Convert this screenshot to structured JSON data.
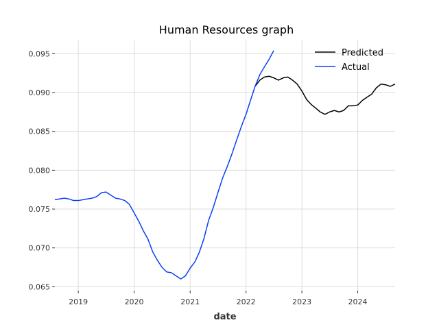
{
  "chart_data": {
    "type": "line",
    "title": "Human Resources graph",
    "xlabel": "date",
    "ylabel": "",
    "xlim": [
      "2018-08-01",
      "2024-09-01"
    ],
    "ylim": [
      0.0645,
      0.0968
    ],
    "grid": true,
    "legend_position": "top-right",
    "x_ticks": [
      "2019",
      "2020",
      "2021",
      "2022",
      "2023",
      "2024"
    ],
    "y_ticks": [
      "0.065",
      "0.070",
      "0.075",
      "0.080",
      "0.085",
      "0.090",
      "0.095"
    ],
    "series": [
      {
        "name": "Predicted",
        "color": "#000000",
        "points": [
          [
            "2022-03-01",
            0.0908
          ],
          [
            "2022-04-01",
            0.0916
          ],
          [
            "2022-05-01",
            0.092
          ],
          [
            "2022-06-01",
            0.0921
          ],
          [
            "2022-07-01",
            0.0919
          ],
          [
            "2022-08-01",
            0.0916
          ],
          [
            "2022-09-01",
            0.0919
          ],
          [
            "2022-10-01",
            0.092
          ],
          [
            "2022-11-01",
            0.0916
          ],
          [
            "2022-12-01",
            0.0911
          ],
          [
            "2023-01-01",
            0.0902
          ],
          [
            "2023-02-01",
            0.0891
          ],
          [
            "2023-03-01",
            0.0885
          ],
          [
            "2023-04-01",
            0.088
          ],
          [
            "2023-05-01",
            0.0875
          ],
          [
            "2023-06-01",
            0.0872
          ],
          [
            "2023-07-01",
            0.0875
          ],
          [
            "2023-08-01",
            0.0877
          ],
          [
            "2023-09-01",
            0.0875
          ],
          [
            "2023-10-01",
            0.0877
          ],
          [
            "2023-11-01",
            0.0883
          ],
          [
            "2023-12-01",
            0.0883
          ],
          [
            "2024-01-01",
            0.0884
          ],
          [
            "2024-02-01",
            0.089
          ],
          [
            "2024-03-01",
            0.0894
          ],
          [
            "2024-04-01",
            0.0898
          ],
          [
            "2024-05-01",
            0.0906
          ],
          [
            "2024-06-01",
            0.0911
          ],
          [
            "2024-07-01",
            0.091
          ],
          [
            "2024-08-01",
            0.0908
          ],
          [
            "2024-09-01",
            0.0911
          ]
        ]
      },
      {
        "name": "Actual",
        "color": "#0a3ef5",
        "points": [
          [
            "2018-08-01",
            0.0762
          ],
          [
            "2018-09-01",
            0.0763
          ],
          [
            "2018-10-01",
            0.0764
          ],
          [
            "2018-11-01",
            0.0763
          ],
          [
            "2018-12-01",
            0.0761
          ],
          [
            "2019-01-01",
            0.0761
          ],
          [
            "2019-02-01",
            0.0762
          ],
          [
            "2019-03-01",
            0.0763
          ],
          [
            "2019-04-01",
            0.0764
          ],
          [
            "2019-05-01",
            0.0766
          ],
          [
            "2019-06-01",
            0.0771
          ],
          [
            "2019-07-01",
            0.0772
          ],
          [
            "2019-08-01",
            0.0768
          ],
          [
            "2019-09-01",
            0.0764
          ],
          [
            "2019-10-01",
            0.0763
          ],
          [
            "2019-11-01",
            0.0761
          ],
          [
            "2019-12-01",
            0.0756
          ],
          [
            "2020-01-01",
            0.0745
          ],
          [
            "2020-02-01",
            0.0734
          ],
          [
            "2020-03-01",
            0.0722
          ],
          [
            "2020-04-01",
            0.0711
          ],
          [
            "2020-05-01",
            0.0695
          ],
          [
            "2020-06-01",
            0.0684
          ],
          [
            "2020-07-01",
            0.0675
          ],
          [
            "2020-08-01",
            0.0669
          ],
          [
            "2020-09-01",
            0.0668
          ],
          [
            "2020-10-01",
            0.0664
          ],
          [
            "2020-11-01",
            0.066
          ],
          [
            "2020-12-01",
            0.0664
          ],
          [
            "2021-01-01",
            0.0674
          ],
          [
            "2021-02-01",
            0.0682
          ],
          [
            "2021-03-01",
            0.0694
          ],
          [
            "2021-04-01",
            0.0712
          ],
          [
            "2021-05-01",
            0.0735
          ],
          [
            "2021-06-01",
            0.0752
          ],
          [
            "2021-07-01",
            0.0771
          ],
          [
            "2021-08-01",
            0.079
          ],
          [
            "2021-09-01",
            0.0805
          ],
          [
            "2021-10-01",
            0.0821
          ],
          [
            "2021-11-01",
            0.0839
          ],
          [
            "2021-12-01",
            0.0856
          ],
          [
            "2022-01-01",
            0.0872
          ],
          [
            "2022-02-01",
            0.0891
          ],
          [
            "2022-03-01",
            0.0908
          ],
          [
            "2022-04-01",
            0.0923
          ],
          [
            "2022-05-01",
            0.0933
          ],
          [
            "2022-06-01",
            0.0943
          ],
          [
            "2022-07-01",
            0.0954
          ]
        ]
      }
    ]
  }
}
